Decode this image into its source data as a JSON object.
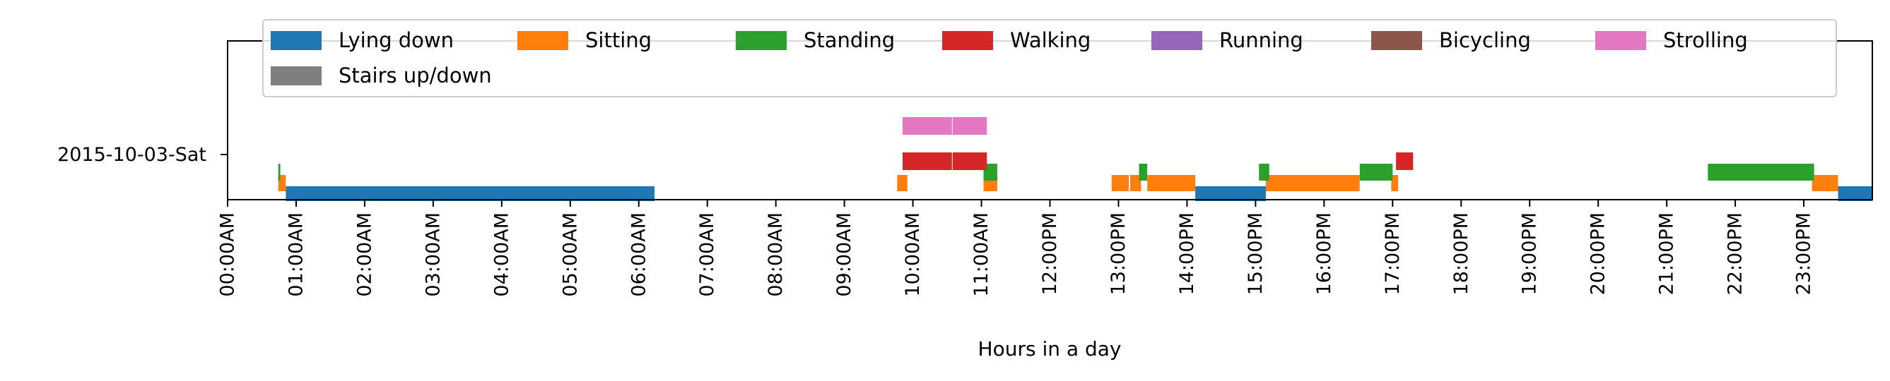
{
  "chart_data": {
    "type": "timeline",
    "title": "",
    "xlabel": "Hours in a day",
    "ylabel": "",
    "xlim": [
      0,
      24
    ],
    "row_label": "2015-10-03-Sat",
    "x_ticks": [
      "00:00AM",
      "01:00AM",
      "02:00AM",
      "03:00AM",
      "04:00AM",
      "05:00AM",
      "06:00AM",
      "07:00AM",
      "08:00AM",
      "09:00AM",
      "10:00AM",
      "11:00AM",
      "12:00PM",
      "13:00PM",
      "14:00PM",
      "15:00PM",
      "16:00PM",
      "17:00PM",
      "18:00PM",
      "19:00PM",
      "20:00PM",
      "21:00PM",
      "22:00PM",
      "23:00PM"
    ],
    "grid": false,
    "legend_position": "top",
    "series": [
      {
        "name": "Lying down",
        "color": "#1f77b4",
        "intervals": [
          [
            0.85,
            6.23
          ],
          [
            14.12,
            15.15
          ],
          [
            23.5,
            24.0
          ]
        ]
      },
      {
        "name": "Sitting",
        "color": "#ff7f0e",
        "intervals": [
          [
            0.74,
            0.85
          ],
          [
            9.77,
            9.92
          ],
          [
            11.03,
            11.23
          ],
          [
            12.9,
            13.15
          ],
          [
            13.17,
            13.33
          ],
          [
            13.42,
            14.12
          ],
          [
            15.15,
            16.52
          ],
          [
            16.98,
            17.08
          ],
          [
            23.12,
            23.5
          ]
        ]
      },
      {
        "name": "Standing",
        "color": "#2ca02c",
        "intervals": [
          [
            0.74,
            0.77
          ],
          [
            11.03,
            11.23
          ],
          [
            13.3,
            13.42
          ],
          [
            15.05,
            15.2
          ],
          [
            16.52,
            17.0
          ],
          [
            21.6,
            23.15
          ]
        ]
      },
      {
        "name": "Walking",
        "color": "#d62728",
        "intervals": [
          [
            9.85,
            10.57
          ],
          [
            10.58,
            11.08
          ],
          [
            17.05,
            17.3
          ]
        ]
      },
      {
        "name": "Running",
        "color": "#9467bd",
        "intervals": []
      },
      {
        "name": "Bicycling",
        "color": "#8c564b",
        "intervals": []
      },
      {
        "name": "Strolling",
        "color": "#e377c2",
        "intervals": [
          [
            9.85,
            10.57
          ],
          [
            10.58,
            11.08
          ]
        ]
      },
      {
        "name": "Stairs up/down",
        "color": "#7f7f7f",
        "intervals": []
      }
    ]
  }
}
